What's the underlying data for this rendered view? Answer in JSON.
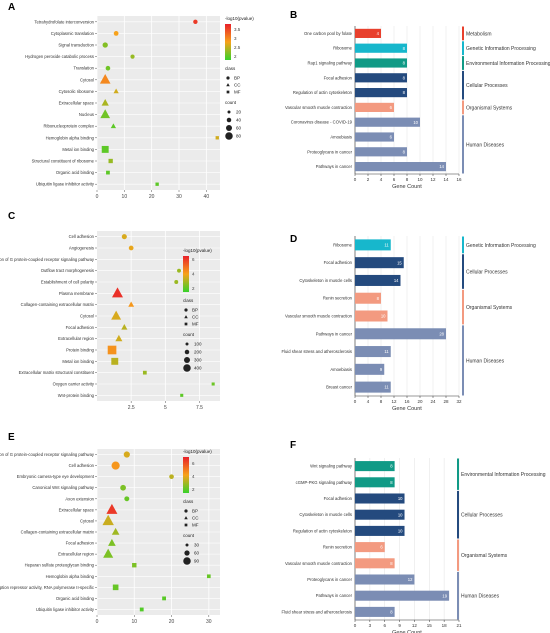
{
  "figure": {
    "panel_labels": [
      "A",
      "B",
      "C",
      "D",
      "E",
      "F"
    ]
  },
  "legend_labels": {
    "pvalue": "-log10(pvalue)",
    "class": "class",
    "count": "count",
    "class_items": [
      "BP",
      "CC",
      "MF"
    ]
  },
  "chart_data": [
    {
      "panel": "A",
      "type": "scatter",
      "xlim": [
        0,
        45
      ],
      "xticks": [
        0,
        10,
        20,
        30,
        40
      ],
      "grid": true,
      "color_scale": {
        "ticks": [
          3.5,
          3.0,
          2.5,
          2.0
        ],
        "min": 1.8,
        "max": 3.8
      },
      "count_legend": [
        20,
        40,
        60,
        80
      ],
      "points": [
        {
          "term": "Tetrahydrofolate interconversion",
          "x": 36,
          "class": "BP",
          "p": 3.6,
          "count": 4
        },
        {
          "term": "Cytoplasmic translation",
          "x": 7,
          "class": "BP",
          "p": 2.8,
          "count": 6
        },
        {
          "term": "Signal transduction",
          "x": 3,
          "class": "BP",
          "p": 2.2,
          "count": 10
        },
        {
          "term": "Hydrogen peroxide catabolic process",
          "x": 13,
          "class": "BP",
          "p": 2.3,
          "count": 3
        },
        {
          "term": "Translation",
          "x": 4,
          "class": "BP",
          "p": 2.1,
          "count": 5
        },
        {
          "term": "Cytosol",
          "x": 3,
          "class": "CC",
          "p": 3.0,
          "count": 72
        },
        {
          "term": "Cytosolic ribosome",
          "x": 7,
          "class": "CC",
          "p": 2.6,
          "count": 6
        },
        {
          "term": "Extracellular space",
          "x": 3,
          "class": "CC",
          "p": 2.4,
          "count": 22
        },
        {
          "term": "Nucleus",
          "x": 3,
          "class": "CC",
          "p": 2.1,
          "count": 56
        },
        {
          "term": "Ribonucleoprotein complex",
          "x": 6,
          "class": "CC",
          "p": 2.0,
          "count": 6
        },
        {
          "term": "Hemoglobin alpha binding",
          "x": 44,
          "class": "MF",
          "p": 2.6,
          "count": 2
        },
        {
          "term": "Metal ion binding",
          "x": 3,
          "class": "MF",
          "p": 2.0,
          "count": 44
        },
        {
          "term": "Structural constituent of ribosome",
          "x": 5,
          "class": "MF",
          "p": 2.3,
          "count": 8
        },
        {
          "term": "Organic acid binding",
          "x": 4,
          "class": "MF",
          "p": 2.0,
          "count": 4
        },
        {
          "term": "Ubiquitin ligase inhibitor activity",
          "x": 22,
          "class": "MF",
          "p": 2.0,
          "count": 2
        }
      ]
    },
    {
      "panel": "B",
      "type": "bar",
      "xlabel": "Gene Count",
      "xlim": [
        0,
        16
      ],
      "xticks": [
        0,
        2,
        4,
        6,
        8,
        10,
        12,
        14,
        16
      ],
      "bars": [
        {
          "label": "One carbon pool by folate",
          "value": 4,
          "group": "Metabolism"
        },
        {
          "label": "Ribosome",
          "value": 8,
          "group": "Genetic Information Processing"
        },
        {
          "label": "Rap1 signaling pathway",
          "value": 8,
          "group": "Environmental Information Processing"
        },
        {
          "label": "Focal adhesion",
          "value": 8,
          "group": "Cellular Processes"
        },
        {
          "label": "Regulation of actin cytoskeleton",
          "value": 8,
          "group": "Cellular Processes"
        },
        {
          "label": "Vascular smooth muscle contraction",
          "value": 6,
          "group": "Organismal Systems"
        },
        {
          "label": "Coronavirus disease - COVID-19",
          "value": 10,
          "group": "Human Diseases"
        },
        {
          "label": "Amoebiasis",
          "value": 6,
          "group": "Human Diseases"
        },
        {
          "label": "Proteoglycans in cancer",
          "value": 8,
          "group": "Human Diseases"
        },
        {
          "label": "Pathways in cancer",
          "value": 14,
          "group": "Human Diseases"
        }
      ],
      "groups": [
        {
          "name": "Metabolism",
          "color": "#e8402d"
        },
        {
          "name": "Genetic Information Processing",
          "color": "#17b7cc"
        },
        {
          "name": "Environmental Information Processing",
          "color": "#109a86"
        },
        {
          "name": "Cellular Processes",
          "color": "#244a7e"
        },
        {
          "name": "Organismal Systems",
          "color": "#f39a80"
        },
        {
          "name": "Human Diseases",
          "color": "#7b8db4"
        }
      ]
    },
    {
      "panel": "C",
      "type": "scatter",
      "xlim": [
        0,
        9
      ],
      "xticks": [
        2.5,
        5.0,
        7.5
      ],
      "grid": true,
      "color_scale": {
        "ticks": [
          6,
          4,
          2
        ],
        "min": 1.5,
        "max": 6.5
      },
      "count_legend": [
        100,
        200,
        300,
        400
      ],
      "points": [
        {
          "term": "Cell adhesion",
          "x": 2.0,
          "class": "BP",
          "p": 3.6,
          "count": 40
        },
        {
          "term": "Angiogenesis",
          "x": 2.5,
          "class": "BP",
          "p": 3.8,
          "count": 30
        },
        {
          "term": "Regulation of G protein-coupled receptor signaling pathway",
          "x": 6.5,
          "class": "BP",
          "p": 3.5,
          "count": 15
        },
        {
          "term": "Outflow tract morphogenesis",
          "x": 6.0,
          "class": "BP",
          "p": 2.8,
          "count": 10
        },
        {
          "term": "Establishment of cell polarity",
          "x": 5.8,
          "class": "BP",
          "p": 2.8,
          "count": 10
        },
        {
          "term": "Plasma membrane",
          "x": 1.5,
          "class": "CC",
          "p": 6.2,
          "count": 400
        },
        {
          "term": "Collagen-containing extracellular matrix",
          "x": 2.5,
          "class": "CC",
          "p": 4.2,
          "count": 50
        },
        {
          "term": "Cytosol",
          "x": 1.4,
          "class": "CC",
          "p": 3.6,
          "count": 300
        },
        {
          "term": "Focal adhesion",
          "x": 2.0,
          "class": "CC",
          "p": 3.2,
          "count": 60
        },
        {
          "term": "Extracellular region",
          "x": 1.6,
          "class": "CC",
          "p": 3.5,
          "count": 100
        },
        {
          "term": "Protein binding",
          "x": 1.1,
          "class": "MF",
          "p": 4.3,
          "count": 420
        },
        {
          "term": "Metal ion binding",
          "x": 1.3,
          "class": "MF",
          "p": 3.2,
          "count": 220
        },
        {
          "term": "Extracellular matrix structural constituent",
          "x": 3.5,
          "class": "MF",
          "p": 2.8,
          "count": 20
        },
        {
          "term": "Oxygen carrier activity",
          "x": 8.5,
          "class": "MF",
          "p": 2.2,
          "count": 5
        },
        {
          "term": "Wnt-protein binding",
          "x": 6.2,
          "class": "MF",
          "p": 2.0,
          "count": 5
        }
      ]
    },
    {
      "panel": "D",
      "type": "bar",
      "xlabel": "Gene Count",
      "xlim": [
        0,
        32
      ],
      "xticks": [
        0,
        4,
        8,
        12,
        16,
        20,
        24,
        28,
        32
      ],
      "bars": [
        {
          "label": "Ribosome",
          "value": 11,
          "group": "Genetic Information Processing"
        },
        {
          "label": "Focal adhesion",
          "value": 15,
          "group": "Cellular Processes"
        },
        {
          "label": "Cytoskeleton in muscle cells",
          "value": 14,
          "group": "Cellular Processes"
        },
        {
          "label": "Renin secretion",
          "value": 8,
          "group": "Organismal Systems"
        },
        {
          "label": "Vascular smooth muscle contraction",
          "value": 10,
          "group": "Organismal Systems"
        },
        {
          "label": "Pathways in cancer",
          "value": 28,
          "group": "Human Diseases"
        },
        {
          "label": "Fluid shear stress and atherosclerosis",
          "value": 11,
          "group": "Human Diseases"
        },
        {
          "label": "Amoebiasis",
          "value": 9,
          "group": "Human Diseases"
        },
        {
          "label": "Breast cancer",
          "value": 11,
          "group": "Human Diseases"
        }
      ],
      "groups": [
        {
          "name": "Genetic Information Processing",
          "color": "#17b7cc"
        },
        {
          "name": "Cellular Processes",
          "color": "#244a7e"
        },
        {
          "name": "Organismal Systems",
          "color": "#f39a80"
        },
        {
          "name": "Human Diseases",
          "color": "#7b8db4"
        }
      ]
    },
    {
      "panel": "E",
      "type": "scatter",
      "xlim": [
        0,
        33
      ],
      "xticks": [
        0,
        10,
        20,
        30
      ],
      "grid": true,
      "color_scale": {
        "ticks": [
          6,
          4,
          2
        ],
        "min": 1.5,
        "max": 7
      },
      "count_legend": [
        30,
        60,
        90
      ],
      "points": [
        {
          "term": "Regulation of G protein-coupled receptor signaling pathway",
          "x": 8,
          "class": "BP",
          "p": 3.8,
          "count": 20
        },
        {
          "term": "Cell adhesion",
          "x": 5,
          "class": "BP",
          "p": 4.5,
          "count": 50
        },
        {
          "term": "Embryonic camera-type eye development",
          "x": 20,
          "class": "BP",
          "p": 3.4,
          "count": 6
        },
        {
          "term": "Canonical Wnt signaling pathway",
          "x": 7,
          "class": "BP",
          "p": 2.5,
          "count": 15
        },
        {
          "term": "Axon extension",
          "x": 8,
          "class": "BP",
          "p": 2.2,
          "count": 8
        },
        {
          "term": "Extracellular space",
          "x": 4,
          "class": "CC",
          "p": 6.5,
          "count": 90
        },
        {
          "term": "Cytosol",
          "x": 3,
          "class": "CC",
          "p": 3.6,
          "count": 100
        },
        {
          "term": "Collagen-containing extracellular matrix",
          "x": 5,
          "class": "CC",
          "p": 3.0,
          "count": 30
        },
        {
          "term": "Focal adhesion",
          "x": 4,
          "class": "CC",
          "p": 2.5,
          "count": 30
        },
        {
          "term": "Extracellular region",
          "x": 3,
          "class": "CC",
          "p": 2.5,
          "count": 70
        },
        {
          "term": "Heparan sulfate proteoglycan binding",
          "x": 10,
          "class": "MF",
          "p": 2.5,
          "count": 10
        },
        {
          "term": "Hemoglobin alpha binding",
          "x": 30,
          "class": "MF",
          "p": 2.2,
          "count": 4
        },
        {
          "term": "DNA-binding transcription repressor activity, RNA polymerase II-specific",
          "x": 5,
          "class": "MF",
          "p": 2.2,
          "count": 25
        },
        {
          "term": "Organic acid binding",
          "x": 18,
          "class": "MF",
          "p": 2.0,
          "count": 5
        },
        {
          "term": "Ubiquitin ligase inhibitor activity",
          "x": 12,
          "class": "MF",
          "p": 1.9,
          "count": 5
        }
      ]
    },
    {
      "panel": "F",
      "type": "bar",
      "xlabel": "Gene Count",
      "xlim": [
        0,
        21
      ],
      "xticks": [
        0,
        3,
        6,
        9,
        12,
        15,
        18,
        21
      ],
      "bars": [
        {
          "label": "Wnt signaling pathway",
          "value": 8,
          "group": "Environmental Information Processing"
        },
        {
          "label": "cGMP-PKG signaling pathway",
          "value": 8,
          "group": "Environmental Information Processing"
        },
        {
          "label": "Focal adhesion",
          "value": 10,
          "group": "Cellular Processes"
        },
        {
          "label": "Cytoskeleton in muscle cells",
          "value": 10,
          "group": "Cellular Processes"
        },
        {
          "label": "Regulation of actin cytoskeleton",
          "value": 10,
          "group": "Cellular Processes"
        },
        {
          "label": "Renin secretion",
          "value": 6,
          "group": "Organismal Systems"
        },
        {
          "label": "Vascular smooth muscle contraction",
          "value": 8,
          "group": "Organismal Systems"
        },
        {
          "label": "Proteoglycans in cancer",
          "value": 12,
          "group": "Human Diseases"
        },
        {
          "label": "Pathways in cancer",
          "value": 19,
          "group": "Human Diseases"
        },
        {
          "label": "Fluid shear stress and atherosclerosis",
          "value": 8,
          "group": "Human Diseases"
        }
      ],
      "groups": [
        {
          "name": "Environmental Information Processing",
          "color": "#109a86"
        },
        {
          "name": "Cellular Processes",
          "color": "#244a7e"
        },
        {
          "name": "Organismal Systems",
          "color": "#f39a80"
        },
        {
          "name": "Human Diseases",
          "color": "#7b8db4"
        }
      ]
    }
  ]
}
